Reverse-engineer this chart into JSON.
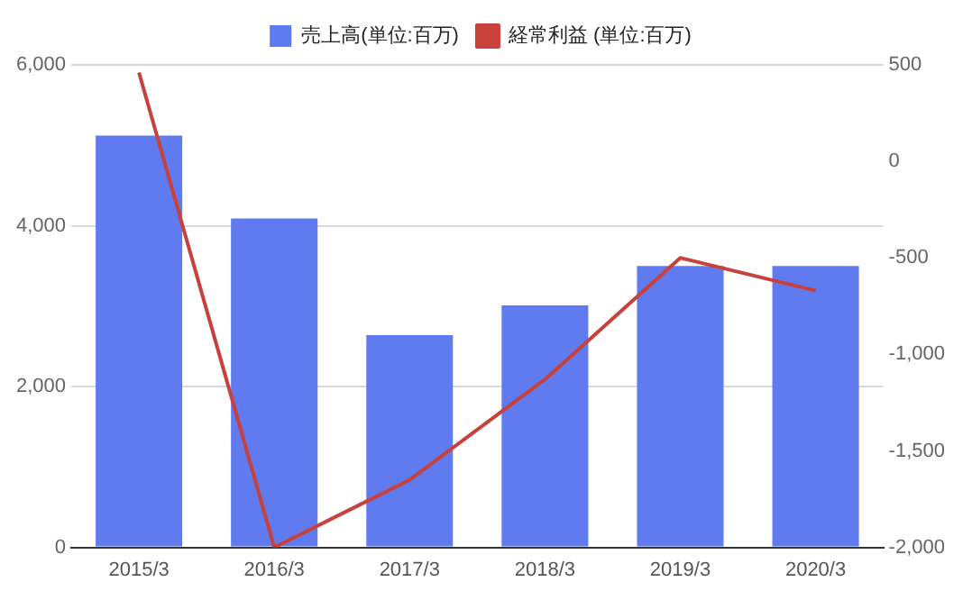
{
  "chart_data": {
    "type": "bar",
    "categories": [
      "2015/3",
      "2016/3",
      "2017/3",
      "2018/3",
      "2019/3",
      "2020/3"
    ],
    "series": [
      {
        "name": "売上高(単位:百万)",
        "color": "#5f7bef",
        "values": [
          5120,
          4090,
          2640,
          3010,
          3500,
          3500
        ]
      },
      {
        "name": "経常利益 (単位:百万)",
        "type": "line",
        "axis": "y2",
        "color": "#c8413a",
        "values": [
          460,
          -2000,
          -1650,
          -1130,
          -500,
          -670
        ]
      }
    ],
    "ylim": [
      0,
      6000
    ],
    "yticks": [
      {
        "value": 0,
        "label": "0"
      },
      {
        "value": 2000,
        "label": "2,000"
      },
      {
        "value": 4000,
        "label": "4,000"
      },
      {
        "value": 6000,
        "label": "6,000"
      }
    ],
    "y2lim": [
      -2000,
      500
    ],
    "y2ticks": [
      {
        "value": -2000,
        "label": "-2,000"
      },
      {
        "value": -1500,
        "label": "-1,500"
      },
      {
        "value": -1000,
        "label": "-1,000"
      },
      {
        "value": -500,
        "label": "-500"
      },
      {
        "value": 0,
        "label": "0"
      },
      {
        "value": 500,
        "label": "500"
      }
    ],
    "grid": "y",
    "legend": "top",
    "marker": "none"
  }
}
